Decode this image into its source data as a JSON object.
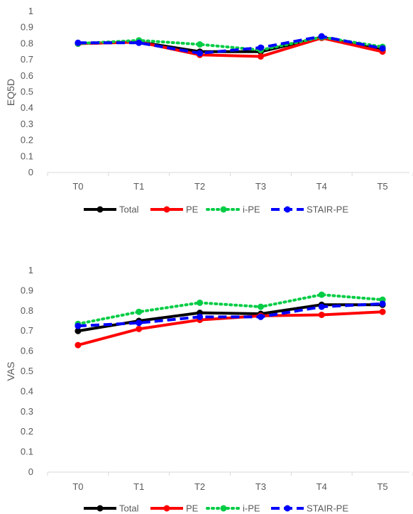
{
  "chart_data": [
    {
      "type": "line",
      "ylabel": "EQ5D",
      "xlabel": "",
      "title": "",
      "categories": [
        "T0",
        "T1",
        "T2",
        "T3",
        "T4",
        "T5"
      ],
      "ylim": [
        0,
        1
      ],
      "yticks": [
        "0",
        "0.1",
        "0.2",
        "0.3",
        "0.4",
        "0.5",
        "0.6",
        "0.7",
        "0.8",
        "0.9",
        "1"
      ],
      "grid": false,
      "legend": "bottom",
      "series": [
        {
          "name": "Total",
          "color": "#000000",
          "style": "solid",
          "values": [
            0.8,
            0.81,
            0.75,
            0.75,
            0.84,
            0.76
          ]
        },
        {
          "name": "PE",
          "color": "#ff0000",
          "style": "solid",
          "values": [
            0.8,
            0.81,
            0.73,
            0.72,
            0.835,
            0.75
          ]
        },
        {
          "name": "i-PE",
          "color": "#00cc44",
          "style": "dotted",
          "values": [
            0.8,
            0.82,
            0.795,
            0.76,
            0.84,
            0.78
          ]
        },
        {
          "name": "STAIR-PE",
          "color": "#0000ff",
          "style": "dashed",
          "values": [
            0.805,
            0.805,
            0.74,
            0.775,
            0.845,
            0.77
          ]
        }
      ]
    },
    {
      "type": "line",
      "ylabel": "VAS",
      "xlabel": "",
      "title": "",
      "categories": [
        "T0",
        "T1",
        "T2",
        "T3",
        "T4",
        "T5"
      ],
      "ylim": [
        0,
        1
      ],
      "yticks": [
        "0",
        "0.1",
        "0.2",
        "0.3",
        "0.4",
        "0.5",
        "0.6",
        "0.7",
        "0.8",
        "0.9",
        "1"
      ],
      "grid": false,
      "legend": "bottom",
      "series": [
        {
          "name": "Total",
          "color": "#000000",
          "style": "solid",
          "values": [
            0.7,
            0.75,
            0.79,
            0.785,
            0.83,
            0.83
          ]
        },
        {
          "name": "PE",
          "color": "#ff0000",
          "style": "solid",
          "values": [
            0.63,
            0.71,
            0.755,
            0.775,
            0.78,
            0.795
          ]
        },
        {
          "name": "i-PE",
          "color": "#00cc44",
          "style": "dotted",
          "values": [
            0.735,
            0.795,
            0.84,
            0.82,
            0.88,
            0.855
          ]
        },
        {
          "name": "STAIR-PE",
          "color": "#0000ff",
          "style": "dashed",
          "values": [
            0.725,
            0.74,
            0.77,
            0.77,
            0.82,
            0.835
          ]
        }
      ]
    }
  ]
}
